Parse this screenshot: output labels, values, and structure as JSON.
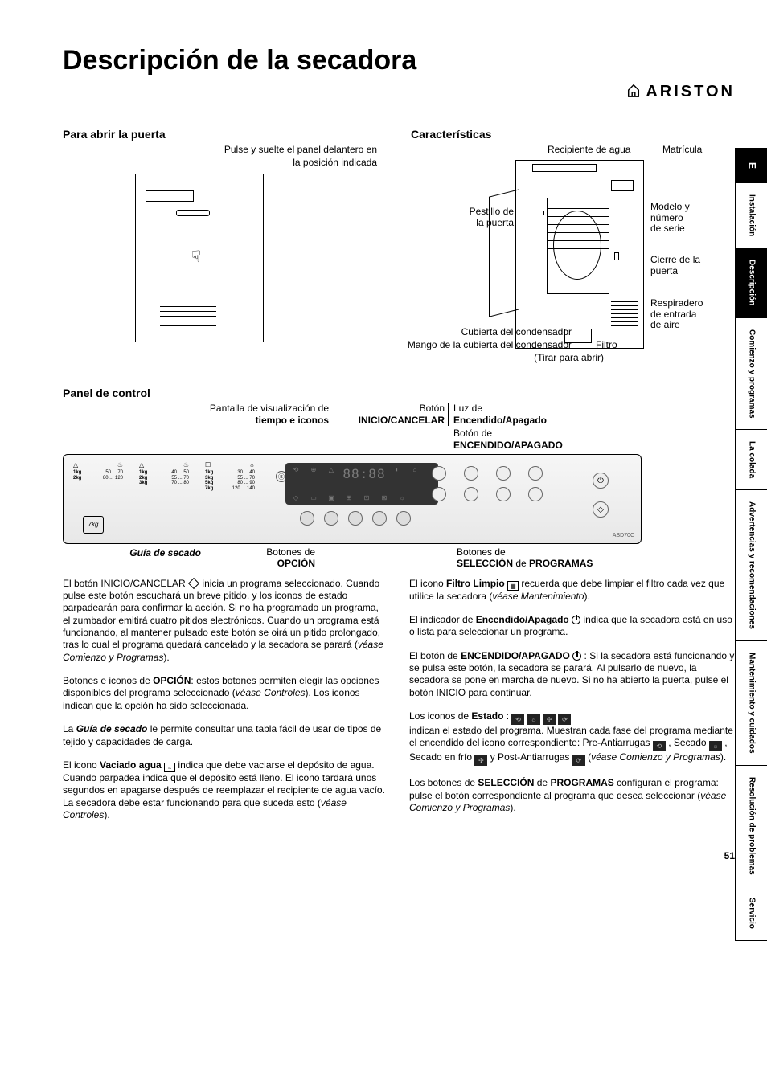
{
  "page": {
    "title": "Descripción de la secadora",
    "brand": "ARISTON",
    "page_number": "51",
    "language_code": "E"
  },
  "side_tabs": [
    {
      "label": "Instalación",
      "active": false
    },
    {
      "label": "Descripción",
      "active": true
    },
    {
      "label": "Comienzo y programas",
      "active": false
    },
    {
      "label": "La colada",
      "active": false
    },
    {
      "label": "Advertencias y recomendaciones",
      "active": false
    },
    {
      "label": "Mantenimiento y cuidados",
      "active": false
    },
    {
      "label": "Resolución de problemas",
      "active": false
    },
    {
      "label": "Servicio",
      "active": false
    }
  ],
  "door_section": {
    "heading": "Para abrir la puerta",
    "text_line1": "Pulse y suelte el panel delantero en",
    "text_line2": "la posición indicada"
  },
  "features_section": {
    "heading": "Características",
    "labels": {
      "water_container": "Recipiente de agua",
      "rating_plate": "Matrícula",
      "door_latch_l1": "Pestillo de",
      "door_latch_l2": "la puerta",
      "model_serial_l1": "Modelo y",
      "model_serial_l2": "número",
      "model_serial_l3": "de serie",
      "door_catch_l1": "Cierre de la",
      "door_catch_l2": "puerta",
      "air_vent_l1": "Respiradero",
      "air_vent_l2": "de entrada",
      "air_vent_l3": "de aire",
      "condenser_cover": "Cubierta del condensador",
      "condenser_handle": "Mango de la cubierta del condensador",
      "filter": "Filtro",
      "pull_open": "(Tirar para abrir)"
    }
  },
  "panel_section": {
    "heading": "Panel de control",
    "top_left_l1": "Pantalla de visualización de",
    "top_left_l2": "tiempo e iconos",
    "start_cancel_l1": "Botón",
    "start_cancel_l2": "INICIO/CANCELAR",
    "onoff_light_l1": "Luz de",
    "onoff_light_l2": "Encendido/Apagado",
    "onoff_btn_l1": "Botón de",
    "onoff_btn_l2": "ENCENDIDO/APAGADO",
    "drying_guide": "Guía de secado",
    "option_btns_l1": "Botones de",
    "option_btns_l2": "OPCIÓN",
    "prog_btns_l1": "Botones de",
    "prog_btns_l2_a": "SELECCIÓN",
    "prog_btns_l2_b": " de ",
    "prog_btns_l2_c": "PROGRAMAS",
    "model_code": "ASD70C",
    "weight_icon": "7kg",
    "display_digits": "88:88"
  },
  "drying_tables": [
    {
      "rows": [
        [
          "1kg",
          "50 ... 70"
        ],
        [
          "2kg",
          "80 ... 120"
        ]
      ]
    },
    {
      "rows": [
        [
          "1kg",
          "40 ... 50"
        ],
        [
          "2kg",
          "55 ... 70"
        ],
        [
          "3kg",
          "70 ... 80"
        ]
      ]
    },
    {
      "rows": [
        [
          "1kg",
          "30 ... 40"
        ],
        [
          "3kg",
          "55 ... 70"
        ],
        [
          "5kg",
          "80 ... 90"
        ],
        [
          "7kg",
          "120 ... 140"
        ]
      ]
    }
  ],
  "body": {
    "left": {
      "p1_a": "El botón INICIO/CANCELAR ",
      "p1_b": " inicia un programa seleccionado. Cuando pulse este botón escuchará un breve pitido, y los iconos de estado parpadearán para confirmar la acción. Si no ha programado un programa, el zumbador emitirá cuatro pitidos electrónicos. Cuando un programa está funcionando, al mantener pulsado este botón se oirá un pitido prolongado, tras lo cual el programa quedará cancelado y la secadora se parará (",
      "p1_c": "véase Comienzo y Programas",
      "p1_d": ").",
      "p2_a": "Botones e iconos de ",
      "p2_b": "OPCIÓN",
      "p2_c": ": estos botones permiten elegir las opciones disponibles del programa seleccionado (",
      "p2_d": "véase Controles",
      "p2_e": "). Los iconos indican que la opción ha sido seleccionada.",
      "p3_a": "La ",
      "p3_b": "Guía de secado",
      "p3_c": " le permite consultar una tabla fácil de usar de tipos de tejido y capacidades de carga.",
      "p4_a": "El icono ",
      "p4_b": "Vaciado agua",
      "p4_c": " indica que debe vaciarse el depósito de agua. Cuando parpadea indica que el depósito está lleno. El icono tardará unos segundos en apagarse después de reemplazar el recipiente de agua vacío. La secadora debe estar funcionando para que suceda esto (",
      "p4_d": "véase Controles",
      "p4_e": ")."
    },
    "right": {
      "p1_a": "El icono ",
      "p1_b": "Filtro Limpio",
      "p1_c": " recuerda que debe limpiar el filtro cada vez que utilice la secadora (",
      "p1_d": "véase Mantenimiento",
      "p1_e": ").",
      "p2_a": "El indicador de ",
      "p2_b": "Encendido/Apagado",
      "p2_c": " indica que la secadora está en uso o lista para seleccionar un programa.",
      "p3_a": "El botón de ",
      "p3_b": "ENCENDIDO/APAGADO",
      "p3_c": " : Si la secadora está funcionando y se pulsa este botón, la secadora se parará. Al pulsarlo de nuevo, la secadora se pone en marcha de nuevo. Si no ha abierto la puerta, pulse el botón INICIO para continuar.",
      "p4_a": "Los iconos de ",
      "p4_b": "Estado",
      "p4_c": " : ",
      "p4_d": "indican el estado del programa. Muestran cada fase del programa mediante el encendido del icono correspondiente: Pre-Antiarrugas ",
      "p4_e": " , Secado ",
      "p4_f": " , Secado en frío ",
      "p4_g": " y Post-Antiarrugas ",
      "p4_h": " (",
      "p4_i": "véase Comienzo y Programas",
      "p4_j": ").",
      "p5_a": "Los botones de ",
      "p5_b": "SELECCIÓN",
      "p5_c": " de ",
      "p5_d": "PROGRAMAS",
      "p5_e": " configuran el programa: pulse el botón correspondiente al programa que desea seleccionar (",
      "p5_f": "véase Comienzo y Programas",
      "p5_g": ")."
    }
  }
}
